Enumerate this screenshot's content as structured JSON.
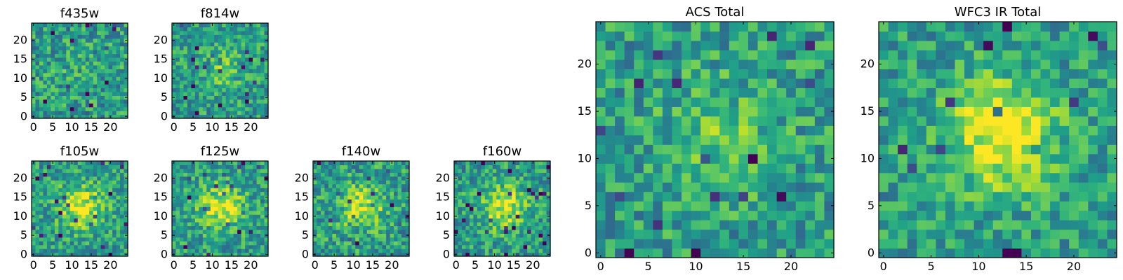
{
  "chart_data": [
    {
      "type": "heatmap",
      "title": "f435w",
      "grid_size": 25,
      "xticks": [
        0,
        5,
        10,
        15,
        20
      ],
      "yticks": [
        0,
        5,
        10,
        15,
        20
      ],
      "cmap": "viridis",
      "noise": 0.24,
      "blob": 0.05,
      "seed": 11
    },
    {
      "type": "heatmap",
      "title": "f814w",
      "grid_size": 25,
      "xticks": [
        0,
        5,
        10,
        15,
        20
      ],
      "yticks": [
        0,
        5,
        10,
        15,
        20
      ],
      "cmap": "viridis",
      "noise": 0.22,
      "blob": 0.18,
      "seed": 23
    },
    {
      "type": "heatmap",
      "title": "f105w",
      "grid_size": 25,
      "xticks": [
        0,
        5,
        10,
        15,
        20
      ],
      "yticks": [
        0,
        5,
        10,
        15,
        20
      ],
      "cmap": "viridis",
      "noise": 0.22,
      "blob": 0.42,
      "seed": 37
    },
    {
      "type": "heatmap",
      "title": "f125w",
      "grid_size": 25,
      "xticks": [
        0,
        5,
        10,
        15,
        20
      ],
      "yticks": [
        0,
        5,
        10,
        15,
        20
      ],
      "cmap": "viridis",
      "noise": 0.22,
      "blob": 0.4,
      "seed": 41
    },
    {
      "type": "heatmap",
      "title": "f140w",
      "grid_size": 25,
      "xticks": [
        0,
        5,
        10,
        15,
        20
      ],
      "yticks": [
        0,
        5,
        10,
        15,
        20
      ],
      "cmap": "viridis",
      "noise": 0.24,
      "blob": 0.36,
      "seed": 53
    },
    {
      "type": "heatmap",
      "title": "f160w",
      "grid_size": 25,
      "xticks": [
        0,
        5,
        10,
        15,
        20
      ],
      "yticks": [
        0,
        5,
        10,
        15,
        20
      ],
      "cmap": "viridis",
      "noise": 0.22,
      "blob": 0.4,
      "seed": 67
    },
    {
      "type": "heatmap",
      "title": "ACS Total",
      "grid_size": 25,
      "xticks": [
        0,
        5,
        10,
        15,
        20
      ],
      "yticks": [
        0,
        5,
        10,
        15,
        20
      ],
      "cmap": "viridis",
      "noise": 0.22,
      "blob": 0.2,
      "seed": 79
    },
    {
      "type": "heatmap",
      "title": "WFC3 IR Total",
      "grid_size": 25,
      "xticks": [
        0,
        5,
        10,
        15,
        20
      ],
      "yticks": [
        0,
        5,
        10,
        15,
        20
      ],
      "cmap": "viridis",
      "noise": 0.2,
      "blob": 0.48,
      "seed": 97
    }
  ]
}
